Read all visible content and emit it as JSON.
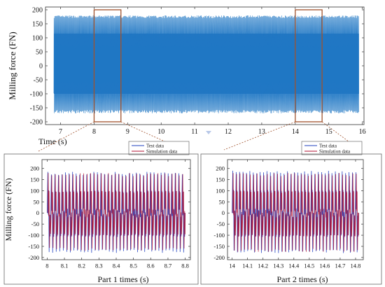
{
  "chart_data": [
    {
      "id": "overview",
      "type": "line",
      "title": "",
      "xlabel": "Time (s)",
      "ylabel": "Milling force (FN)",
      "xlim": [
        6.55,
        16.05
      ],
      "ylim": [
        -210,
        210
      ],
      "xticks": [
        7,
        8,
        9,
        10,
        11,
        12,
        13,
        14,
        15,
        16
      ],
      "yticks": [
        -200,
        -150,
        -100,
        -50,
        0,
        50,
        100,
        150,
        200
      ],
      "series": [
        {
          "name": "",
          "color": "#1f77c4",
          "x_range": [
            6.8,
            15.9
          ],
          "peak": 180,
          "trough": -170,
          "frequency_hz": 6
        }
      ],
      "highlight_boxes": [
        {
          "x_range": [
            8.0,
            8.8
          ],
          "y_range": [
            -200,
            200
          ],
          "color": "#a0522d"
        },
        {
          "x_range": [
            14.0,
            14.8
          ],
          "y_range": [
            -200,
            200
          ],
          "color": "#a0522d"
        }
      ],
      "grid": false
    },
    {
      "id": "part1",
      "type": "line",
      "title": "",
      "xlabel": "Part 1   times (s)",
      "ylabel": "Milling force (FN)",
      "xlim": [
        7.97,
        8.83
      ],
      "ylim": [
        -210,
        240
      ],
      "xticks": [
        8,
        8.1,
        8.2,
        8.3,
        8.4,
        8.5,
        8.6,
        8.7,
        8.8
      ],
      "yticks": [
        -200,
        -150,
        -100,
        -50,
        0,
        50,
        100,
        150,
        200
      ],
      "legend": "top-right",
      "series": [
        {
          "name": "Test   data",
          "color": "#1f3fbf",
          "x_range": [
            8.0,
            8.8
          ],
          "peak": 185,
          "trough": -180,
          "cycles": 39
        },
        {
          "name": "Simulation data",
          "color": "#b01030",
          "x_range": [
            8.0,
            8.8
          ],
          "peak": 180,
          "trough": -170,
          "cycles": 39
        }
      ],
      "grid": false
    },
    {
      "id": "part2",
      "type": "line",
      "title": "",
      "xlabel": "Part 2   times (s)",
      "ylabel": "",
      "xlim": [
        13.97,
        14.85
      ],
      "ylim": [
        -210,
        240
      ],
      "xticks": [
        14,
        14.1,
        14.2,
        14.3,
        14.4,
        14.5,
        14.6,
        14.7,
        14.8
      ],
      "yticks": [
        -200,
        -150,
        -100,
        -50,
        0,
        50,
        100,
        150,
        200
      ],
      "legend": "top-right",
      "series": [
        {
          "name": "Test   data",
          "color": "#1f3fbf",
          "x_range": [
            14.0,
            14.82
          ],
          "peak": 190,
          "trough": -180,
          "cycles": 37
        },
        {
          "name": "Simulation data",
          "color": "#b01030",
          "x_range": [
            14.0,
            14.82
          ],
          "peak": 180,
          "trough": -175,
          "cycles": 37
        }
      ],
      "grid": false
    }
  ]
}
